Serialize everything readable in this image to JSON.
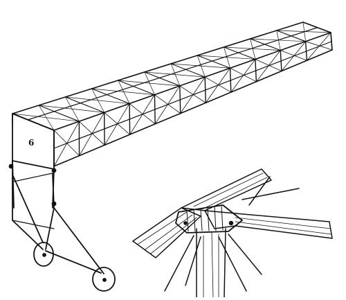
{
  "figure": {
    "number_label": "6",
    "ink_color": "#111111",
    "paper_color": "#ffffff"
  }
}
